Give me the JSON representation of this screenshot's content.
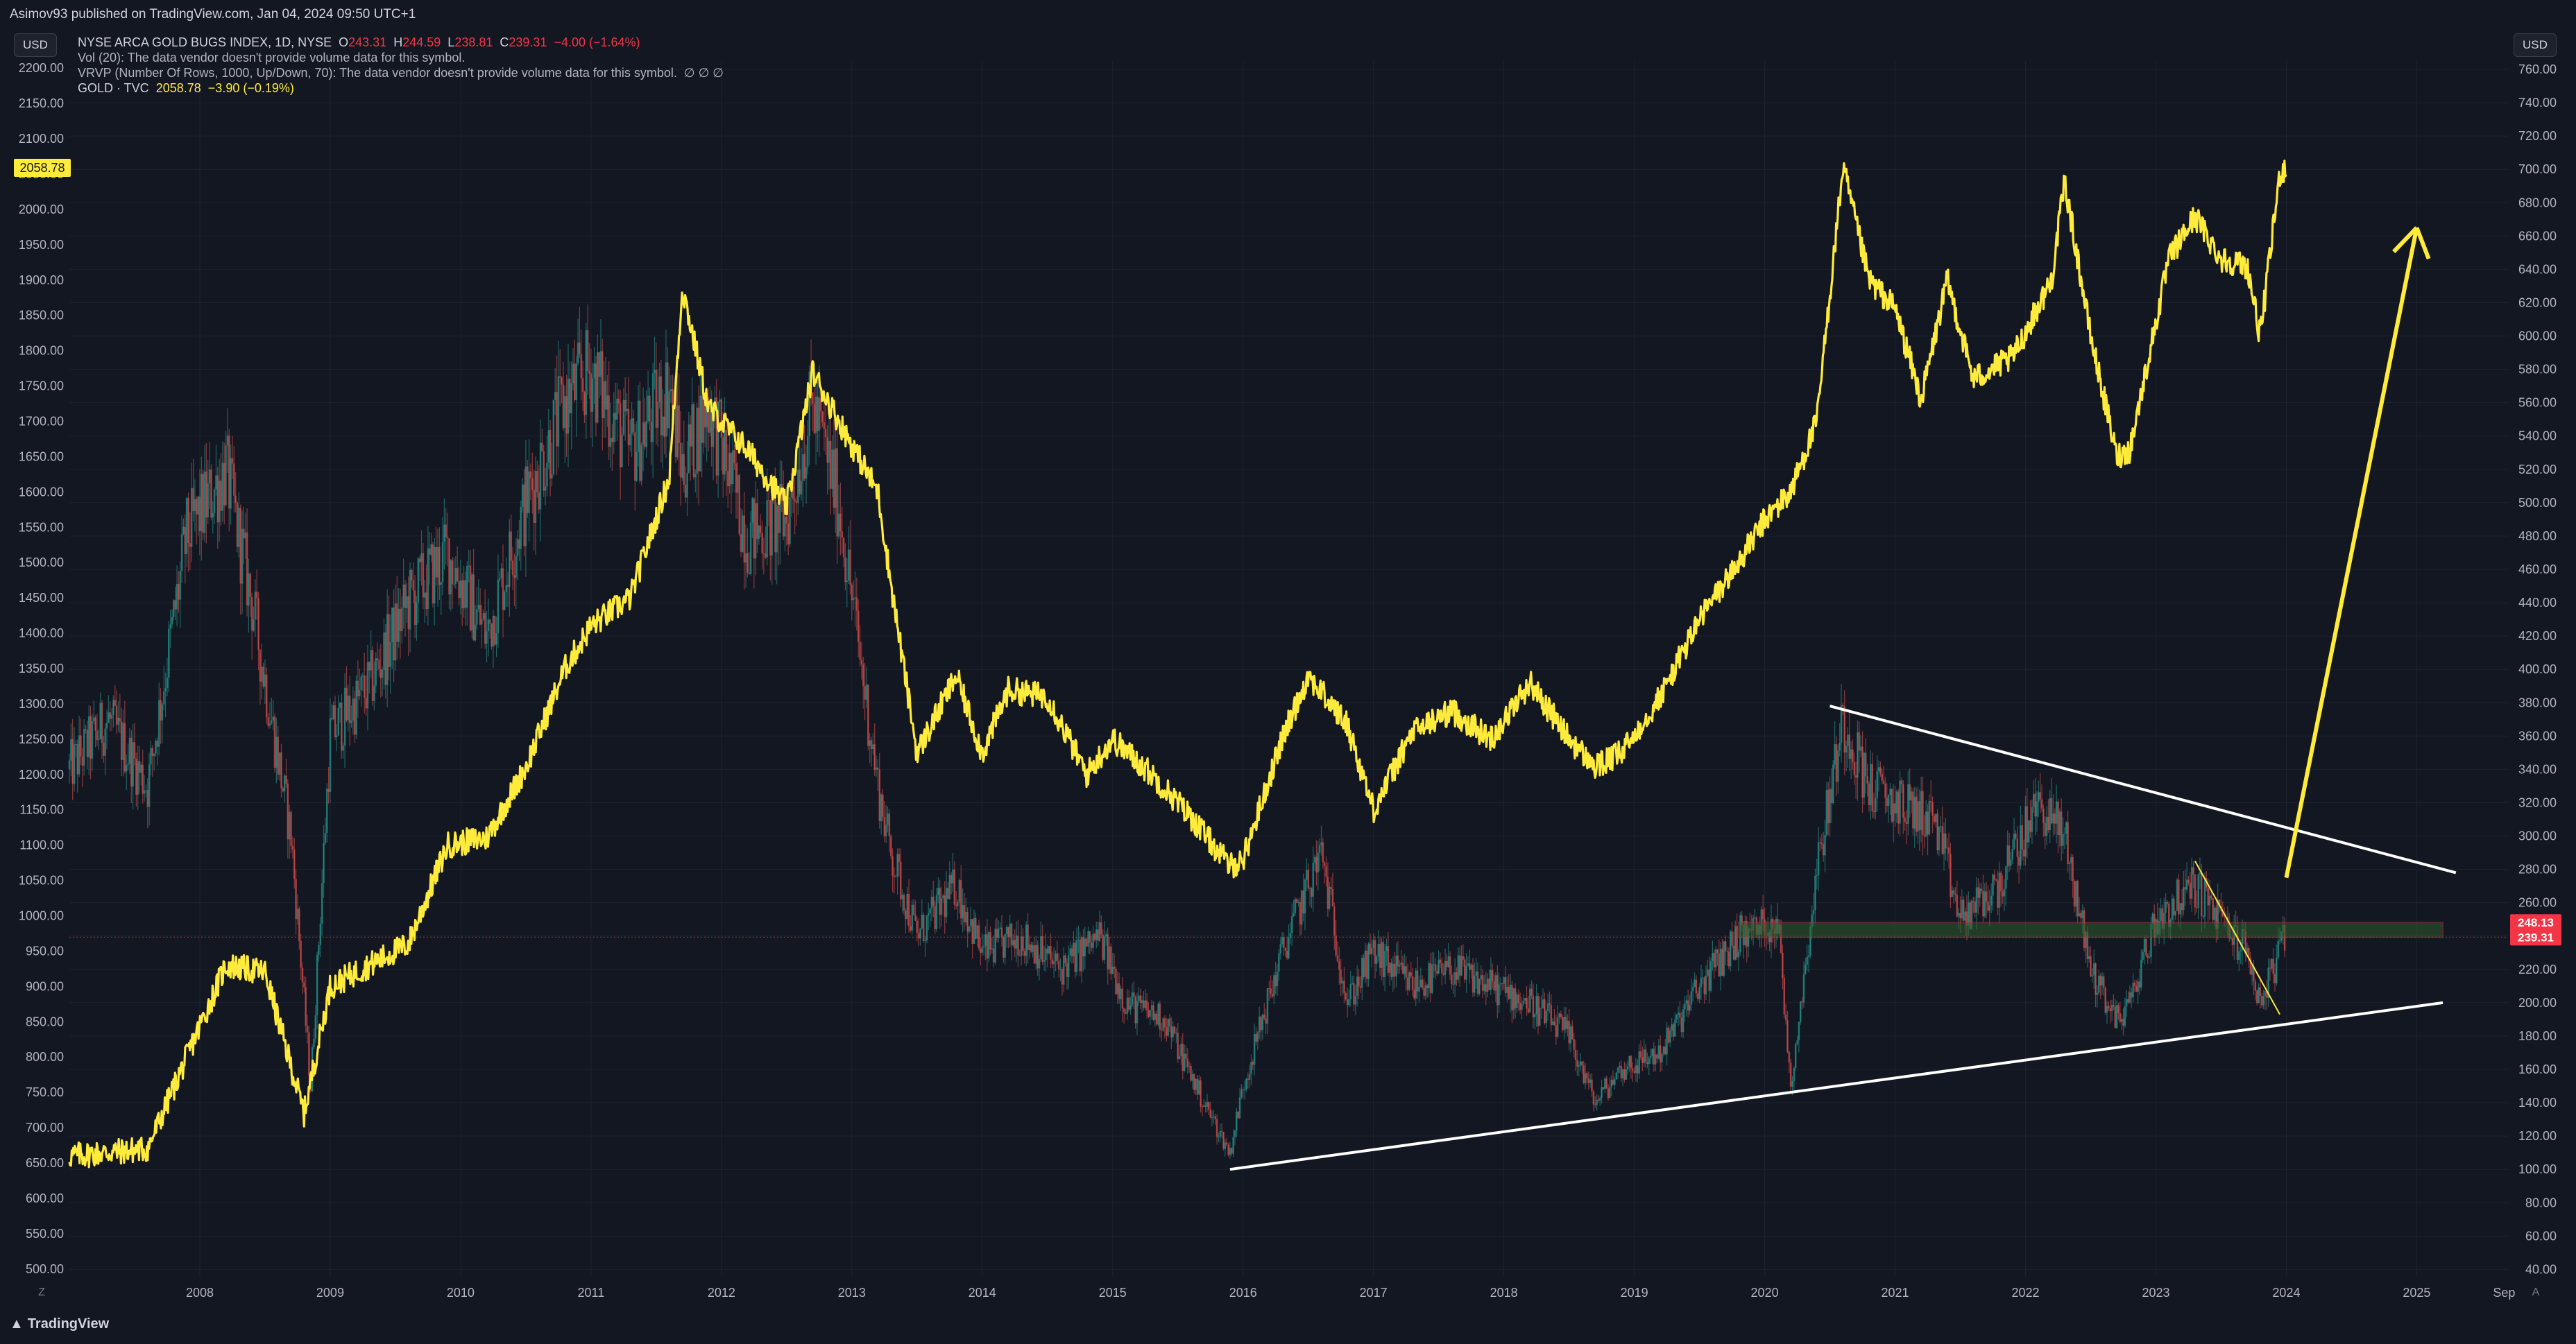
{
  "header": {
    "published": "Asimov93 published on TradingView.com, Jan 04, 2024 09:50 UTC+1"
  },
  "scales": {
    "left_currency": "USD",
    "right_currency": "USD"
  },
  "legend": {
    "symbol": "NYSE ARCA GOLD BUGS INDEX, 1D, NYSE",
    "o_label": "O",
    "o_value": "243.31",
    "h_label": "H",
    "h_value": "244.59",
    "l_label": "L",
    "l_value": "238.81",
    "c_label": "C",
    "c_value": "239.31",
    "change": "−4.00 (−1.64%)",
    "vol": "Vol (20): The data vendor doesn't provide volume data for this symbol.",
    "vrvp": "VRVP (Number Of Rows, 1000, Up/Down, 70): The data vendor doesn't provide volume data for this symbol.",
    "vrvp_vals": "∅ ∅ ∅",
    "gold_label": "GOLD · TVC",
    "gold_value": "2058.78",
    "gold_change": "−3.90 (−0.19%)"
  },
  "footer": {
    "logo_text": "TradingView",
    "left_scale_btn": "Z",
    "right_scale_btn": "A"
  },
  "colors": {
    "background": "#131722",
    "grid": "#1e2230",
    "gold_line": "#ffeb3b",
    "candle_up": "#26a69a",
    "candle_down": "#ef5350",
    "trendline": "#ffffff",
    "price_label_red": "#f23645"
  },
  "chart_data": {
    "type": "line",
    "x_axis": {
      "ticks": [
        "2008",
        "2009",
        "2010",
        "2011",
        "2012",
        "2013",
        "2014",
        "2015",
        "2016",
        "2017",
        "2018",
        "2019",
        "2020",
        "2021",
        "2022",
        "2023",
        "2024",
        "2025",
        "Sep"
      ],
      "range": [
        2007.0,
        2025.7
      ]
    },
    "left_axis": {
      "label": "",
      "ticks": [
        "500.00",
        "550.00",
        "600.00",
        "650.00",
        "700.00",
        "750.00",
        "800.00",
        "850.00",
        "900.00",
        "950.00",
        "1000.00",
        "1050.00",
        "1100.00",
        "1150.00",
        "1200.00",
        "1250.00",
        "1300.00",
        "1350.00",
        "1400.00",
        "1450.00",
        "1500.00",
        "1550.00",
        "1600.00",
        "1650.00",
        "1700.00",
        "1750.00",
        "1800.00",
        "1850.00",
        "1900.00",
        "1950.00",
        "2000.00",
        "2050.00",
        "2100.00",
        "2150.00",
        "2200.00"
      ],
      "range": [
        490,
        2210
      ],
      "current_label": "2058.78"
    },
    "right_axis": {
      "label": "",
      "ticks": [
        "40.00",
        "60.00",
        "80.00",
        "100.00",
        "120.00",
        "140.00",
        "160.00",
        "180.00",
        "200.00",
        "220.00",
        "240.00",
        "260.00",
        "280.00",
        "300.00",
        "320.00",
        "340.00",
        "360.00",
        "380.00",
        "400.00",
        "420.00",
        "440.00",
        "460.00",
        "480.00",
        "500.00",
        "520.00",
        "540.00",
        "560.00",
        "580.00",
        "600.00",
        "620.00",
        "640.00",
        "660.00",
        "680.00",
        "700.00",
        "720.00",
        "740.00",
        "760.00"
      ],
      "range": [
        36,
        765
      ],
      "price_labels": [
        {
          "value": 248.13,
          "text": "248.13"
        },
        {
          "value": 239.31,
          "text": "239.31"
        }
      ]
    },
    "series": [
      {
        "name": "GOLD · TVC",
        "axis": "left",
        "x": [
          2007.0,
          2007.3,
          2007.6,
          2007.9,
          2008.2,
          2008.5,
          2008.8,
          2009.0,
          2009.3,
          2009.6,
          2009.9,
          2010.2,
          2010.5,
          2010.8,
          2011.0,
          2011.3,
          2011.6,
          2011.7,
          2011.9,
          2012.2,
          2012.5,
          2012.7,
          2012.9,
          2013.2,
          2013.3,
          2013.5,
          2013.8,
          2014.0,
          2014.2,
          2014.5,
          2014.8,
          2015.0,
          2015.3,
          2015.6,
          2015.9,
          2016.0,
          2016.3,
          2016.5,
          2016.8,
          2017.0,
          2017.3,
          2017.6,
          2017.9,
          2018.2,
          2018.5,
          2018.7,
          2018.9,
          2019.2,
          2019.5,
          2019.8,
          2020.0,
          2020.2,
          2020.4,
          2020.6,
          2020.8,
          2021.0,
          2021.2,
          2021.4,
          2021.6,
          2021.9,
          2022.2,
          2022.3,
          2022.5,
          2022.7,
          2022.8,
          2023.1,
          2023.3,
          2023.5,
          2023.7,
          2023.8,
          2023.95,
          2024.0
        ],
        "values": [
          660,
          665,
          670,
          800,
          930,
          920,
          720,
          900,
          930,
          960,
          1100,
          1110,
          1210,
          1350,
          1410,
          1450,
          1620,
          1890,
          1720,
          1660,
          1580,
          1770,
          1700,
          1600,
          1470,
          1230,
          1340,
          1230,
          1320,
          1310,
          1200,
          1250,
          1200,
          1140,
          1070,
          1080,
          1250,
          1340,
          1270,
          1150,
          1260,
          1290,
          1250,
          1330,
          1250,
          1210,
          1230,
          1310,
          1420,
          1500,
          1560,
          1600,
          1700,
          2060,
          1900,
          1860,
          1730,
          1900,
          1760,
          1790,
          1900,
          2040,
          1820,
          1650,
          1660,
          1930,
          1990,
          1930,
          1920,
          1820,
          2050,
          2060
        ]
      },
      {
        "name": "NYSE ARCA GOLD BUGS INDEX, 1D, NYSE",
        "axis": "right",
        "x": [
          2007.0,
          2007.3,
          2007.6,
          2007.9,
          2008.2,
          2008.4,
          2008.7,
          2008.85,
          2009.0,
          2009.3,
          2009.6,
          2009.9,
          2010.2,
          2010.5,
          2010.8,
          2011.0,
          2011.3,
          2011.6,
          2011.7,
          2011.9,
          2012.2,
          2012.5,
          2012.7,
          2012.9,
          2013.2,
          2013.3,
          2013.5,
          2013.8,
          2014.0,
          2014.3,
          2014.6,
          2014.9,
          2015.1,
          2015.4,
          2015.7,
          2015.9,
          2016.0,
          2016.3,
          2016.6,
          2016.8,
          2017.0,
          2017.3,
          2017.6,
          2017.9,
          2018.2,
          2018.5,
          2018.7,
          2018.9,
          2019.2,
          2019.5,
          2019.8,
          2020.1,
          2020.2,
          2020.4,
          2020.6,
          2020.8,
          2021.0,
          2021.3,
          2021.5,
          2021.8,
          2022.1,
          2022.3,
          2022.5,
          2022.7,
          2022.8,
          2023.0,
          2023.3,
          2023.5,
          2023.7,
          2023.8,
          2023.95,
          2024.0
        ],
        "values": [
          340,
          370,
          330,
          480,
          520,
          440,
          300,
          150,
          360,
          390,
          440,
          470,
          420,
          500,
          560,
          580,
          530,
          570,
          520,
          560,
          480,
          490,
          560,
          500,
          330,
          290,
          240,
          270,
          230,
          240,
          220,
          240,
          200,
          190,
          140,
          110,
          150,
          230,
          290,
          200,
          230,
          210,
          220,
          210,
          200,
          180,
          140,
          160,
          170,
          210,
          240,
          250,
          150,
          280,
          370,
          330,
          320,
          310,
          250,
          270,
          320,
          300,
          220,
          190,
          200,
          250,
          270,
          250,
          230,
          200,
          230,
          240
        ]
      }
    ],
    "annotations": [
      {
        "kind": "trendline",
        "color": "white",
        "from": [
          2015.9,
          100
        ],
        "to": [
          2025.2,
          200
        ]
      },
      {
        "kind": "trendline",
        "color": "white",
        "from": [
          2020.5,
          378
        ],
        "to": [
          2025.3,
          278
        ]
      },
      {
        "kind": "trendline",
        "color": "yellow-thin",
        "from": [
          2023.3,
          285
        ],
        "to": [
          2023.95,
          193
        ]
      },
      {
        "kind": "zone",
        "color": "green-red",
        "y_from": 239.31,
        "y_to": 248.13,
        "x_from": 2019.8,
        "x_to": 2025.2
      },
      {
        "kind": "arrow",
        "color": "yellow",
        "from": [
          2024.0,
          275
        ],
        "to": [
          2025.0,
          665
        ]
      }
    ]
  }
}
